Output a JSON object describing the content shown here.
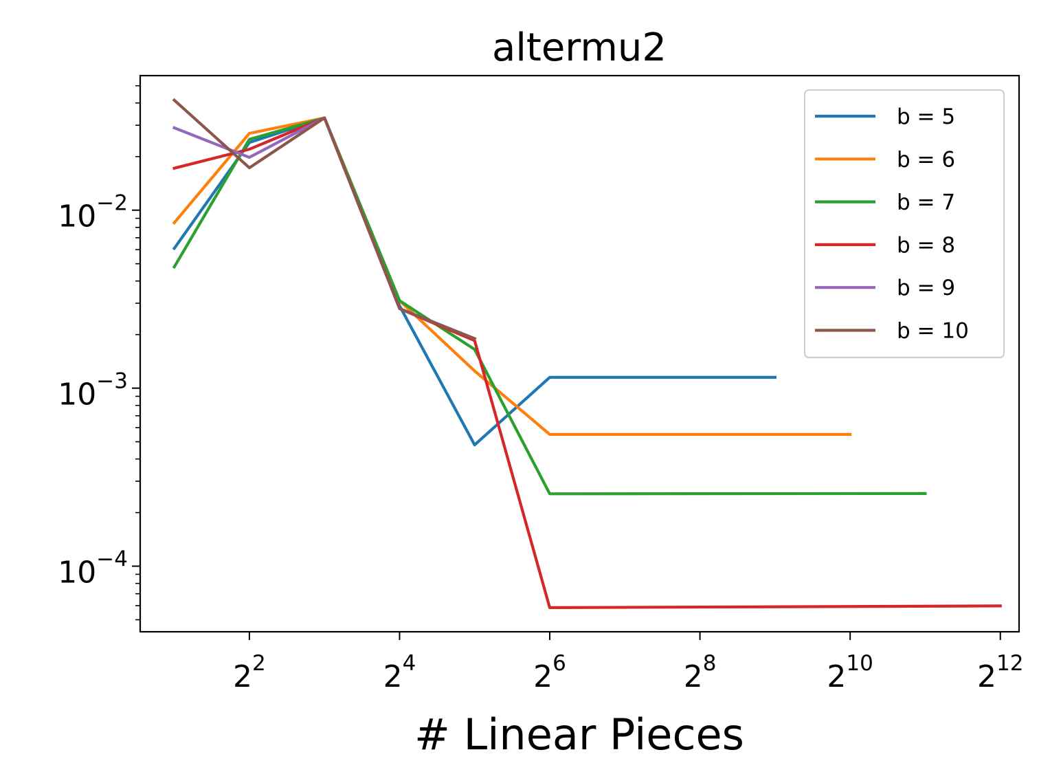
{
  "chart_data": {
    "type": "line",
    "title": "altermu2",
    "xlabel": "# Linear Pieces",
    "ylabel": "",
    "x_scale": "log2",
    "y_scale": "log10",
    "xlim": [
      1.46,
      4870
    ],
    "ylim": [
      4.28e-05,
      0.057
    ],
    "x_ticks": [
      {
        "base": "2",
        "exp": "2",
        "value": 4
      },
      {
        "base": "2",
        "exp": "4",
        "value": 16
      },
      {
        "base": "2",
        "exp": "6",
        "value": 64
      },
      {
        "base": "2",
        "exp": "8",
        "value": 256
      },
      {
        "base": "2",
        "exp": "10",
        "value": 1024
      },
      {
        "base": "2",
        "exp": "12",
        "value": 4096
      }
    ],
    "y_ticks": [
      {
        "base": "10",
        "exp": "−2",
        "value": 0.01
      },
      {
        "base": "10",
        "exp": "−3",
        "value": 0.001
      },
      {
        "base": "10",
        "exp": "−4",
        "value": 0.0001
      }
    ],
    "legend_position": "top-right",
    "grid": false,
    "series": [
      {
        "name": "b = 5",
        "color": "#1f77b4",
        "x": [
          2,
          4,
          8,
          16,
          32,
          64,
          512
        ],
        "y": [
          0.0061,
          0.024,
          0.033,
          0.0029,
          0.00048,
          0.00115,
          0.00115
        ]
      },
      {
        "name": "b = 6",
        "color": "#ff7f0e",
        "x": [
          2,
          4,
          8,
          16,
          32,
          64,
          1024
        ],
        "y": [
          0.0085,
          0.027,
          0.033,
          0.0031,
          0.00125,
          0.00055,
          0.00055
        ]
      },
      {
        "name": "b = 7",
        "color": "#2ca02c",
        "x": [
          2,
          4,
          8,
          16,
          32,
          64,
          2048
        ],
        "y": [
          0.0048,
          0.025,
          0.033,
          0.0031,
          0.00165,
          0.000255,
          0.000256
        ]
      },
      {
        "name": "b = 8",
        "color": "#d62728",
        "x": [
          2,
          4,
          8,
          16,
          32,
          64,
          4096
        ],
        "y": [
          0.0172,
          0.022,
          0.033,
          0.0028,
          0.00185,
          5.85e-05,
          5.98e-05
        ]
      },
      {
        "name": "b = 9",
        "color": "#9467bd",
        "x": [
          2,
          4,
          8,
          16,
          32
        ],
        "y": [
          0.029,
          0.0198,
          0.033,
          0.0028,
          0.0019
        ]
      },
      {
        "name": "b = 10",
        "color": "#8c564b",
        "x": [
          2,
          4,
          8,
          16,
          32
        ],
        "y": [
          0.0415,
          0.0173,
          0.033,
          0.0028,
          0.0019
        ]
      }
    ]
  }
}
